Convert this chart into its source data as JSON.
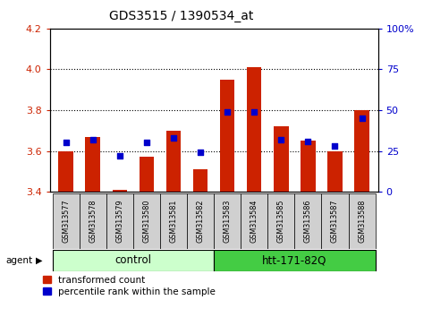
{
  "title": "GDS3515 / 1390534_at",
  "samples": [
    "GSM313577",
    "GSM313578",
    "GSM313579",
    "GSM313580",
    "GSM313581",
    "GSM313582",
    "GSM313583",
    "GSM313584",
    "GSM313585",
    "GSM313586",
    "GSM313587",
    "GSM313588"
  ],
  "transformed_counts": [
    3.6,
    3.67,
    3.41,
    3.57,
    3.7,
    3.51,
    3.95,
    4.01,
    3.72,
    3.65,
    3.6,
    3.8
  ],
  "percentile_ranks": [
    30,
    32,
    22,
    30,
    33,
    24,
    49,
    49,
    32,
    31,
    28,
    45
  ],
  "ylim_left": [
    3.4,
    4.2
  ],
  "ylim_right": [
    0,
    100
  ],
  "yticks_left": [
    3.4,
    3.6,
    3.8,
    4.0,
    4.2
  ],
  "yticks_right": [
    0,
    25,
    50,
    75,
    100
  ],
  "ytick_labels_right": [
    "0",
    "25",
    "50",
    "75",
    "100%"
  ],
  "bar_color": "#cc2200",
  "marker_color": "#0000cc",
  "bg_color": "#ffffff",
  "left_tick_color": "#cc2200",
  "right_tick_color": "#0000cc",
  "control_label": "control",
  "treatment_label": "htt-171-82Q",
  "control_bg": "#ccffcc",
  "treatment_bg": "#44cc44",
  "agent_label": "agent",
  "legend_red_label": "transformed count",
  "legend_blue_label": "percentile rank within the sample",
  "bar_bottom": 3.4,
  "grid_ticks": [
    3.6,
    3.8,
    4.0
  ]
}
